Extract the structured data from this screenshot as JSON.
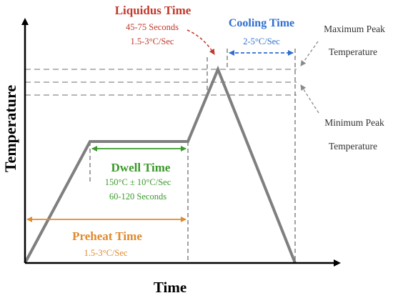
{
  "axes": {
    "x_label": "Time",
    "y_label": "Temperature"
  },
  "liquidus": {
    "title": "Liquidus Time",
    "duration": "45-75 Seconds",
    "rate": "1.5-3°C/Sec"
  },
  "cooling": {
    "title": "Cooling Time",
    "rate": "2-5°C/Sec"
  },
  "dwell": {
    "title": "Dwell Time",
    "temp": "150°C ± 10°C/Sec",
    "duration": "60-120 Seconds"
  },
  "preheat": {
    "title": "Preheat Time",
    "rate": "1.5-3°C/Sec"
  },
  "max_peak": {
    "line1": "Maximum Peak",
    "line2": "Temperature"
  },
  "min_peak": {
    "line1": "Minimum Peak",
    "line2": "Temperature"
  },
  "colors": {
    "profile": "#7f7f7f",
    "liquidus": "#c0392b",
    "cooling": "#2e6fd0",
    "dwell": "#3a9a2a",
    "preheat": "#e08a2c",
    "dashed": "#8a8a8a",
    "axis": "#000000"
  }
}
